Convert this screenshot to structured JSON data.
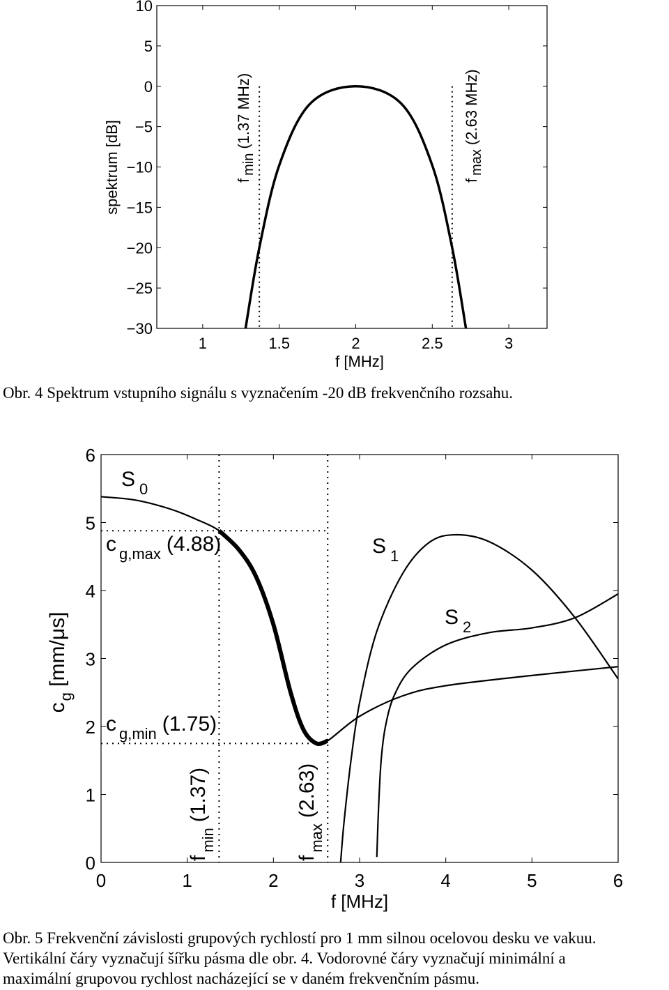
{
  "chart_data": [
    {
      "type": "line",
      "xlabel": "f [MHz]",
      "ylabel": "spektrum [dB]",
      "xlim": [
        0.7,
        3.25
      ],
      "ylim": [
        -30,
        10
      ],
      "xticks": [
        "1",
        "1.5",
        "2",
        "2.5",
        "3"
      ],
      "yticks": [
        "10",
        "5",
        "0",
        "−5",
        "−10",
        "−15",
        "−20",
        "−25",
        "−30"
      ],
      "series": [
        {
          "name": "spektrum",
          "x": [
            1.28,
            1.37,
            1.5,
            1.7,
            2.0,
            2.3,
            2.5,
            2.63,
            2.72
          ],
          "values": [
            -30,
            -20,
            -9.8,
            -2.2,
            0,
            -2.2,
            -9.8,
            -20,
            -30
          ]
        }
      ],
      "markers": [
        {
          "x": 1.37,
          "label_main": "f",
          "label_sub": "min",
          "label_val": "(1.37 MHz)"
        },
        {
          "x": 2.63,
          "label_main": "f",
          "label_sub": "max",
          "label_val": "(2.63 MHz)"
        }
      ]
    },
    {
      "type": "line",
      "xlabel": "f [MHz]",
      "ylabel_main": "c",
      "ylabel_sub": "g",
      "ylabel_rest": " [mm/μs]",
      "xlim": [
        0,
        6
      ],
      "ylim": [
        0,
        6
      ],
      "xticks": [
        "0",
        "1",
        "2",
        "3",
        "4",
        "5",
        "6"
      ],
      "yticks": [
        "6",
        "5",
        "4",
        "3",
        "2",
        "1",
        "0"
      ],
      "series": [
        {
          "name": "S 0",
          "x": [
            0,
            0.4,
            0.8,
            1.1,
            1.37,
            1.6,
            1.8,
            2.0,
            2.2,
            2.35,
            2.5,
            2.63,
            3.0,
            3.5,
            4.0,
            5.0,
            6.0
          ],
          "values": [
            5.38,
            5.33,
            5.2,
            5.05,
            4.88,
            4.6,
            4.2,
            3.5,
            2.5,
            1.95,
            1.75,
            1.79,
            2.15,
            2.45,
            2.6,
            2.75,
            2.88
          ]
        },
        {
          "name": "S 1",
          "x": [
            2.78,
            2.82,
            2.9,
            3.0,
            3.2,
            3.5,
            3.8,
            4.1,
            4.5,
            5.0,
            5.5,
            6.0
          ],
          "values": [
            0,
            0.6,
            1.5,
            2.35,
            3.4,
            4.25,
            4.7,
            4.82,
            4.72,
            4.3,
            3.6,
            2.7
          ]
        },
        {
          "name": "S 2",
          "x": [
            3.2,
            3.22,
            3.25,
            3.3,
            3.4,
            3.6,
            4.0,
            4.5,
            5.0,
            5.5,
            6.0
          ],
          "values": [
            0.08,
            0.8,
            1.5,
            2.0,
            2.45,
            2.85,
            3.2,
            3.38,
            3.45,
            3.6,
            3.95
          ]
        }
      ],
      "highlight": {
        "x_from": 1.37,
        "x_to": 2.63
      },
      "hlines": [
        {
          "y": 4.88,
          "label_main": "c",
          "label_sub": "g,max",
          "label_val": "(4.88)"
        },
        {
          "y": 1.75,
          "label_main": "c",
          "label_sub": "g,min",
          "label_val": "(1.75)"
        }
      ],
      "vlines": [
        {
          "x": 1.37,
          "label_main": "f",
          "label_sub": "min",
          "label_val": "(1.37)"
        },
        {
          "x": 2.63,
          "label_main": "f",
          "label_sub": "max",
          "label_val": "(2.63)"
        }
      ],
      "curve_labels": [
        {
          "main": "S",
          "sub": "0"
        },
        {
          "main": "S",
          "sub": "1"
        },
        {
          "main": "S",
          "sub": "2"
        }
      ]
    }
  ],
  "captions": {
    "fig4": "Obr. 4 Spektrum vstupního signálu s vyznačením -20 dB frekvenčního rozsahu.",
    "fig5_line1": "Obr. 5 Frekvenční závislosti grupových rychlostí pro 1 mm silnou ocelovou desku ve vakuu.",
    "fig5_line2": "Vertikální čáry vyznačují šířku pásma dle obr. 4. Vodorovné čáry vyznačují minimální a",
    "fig5_line3": "maximální grupovou rychlost nacházející se v daném frekvenčním pásmu."
  }
}
